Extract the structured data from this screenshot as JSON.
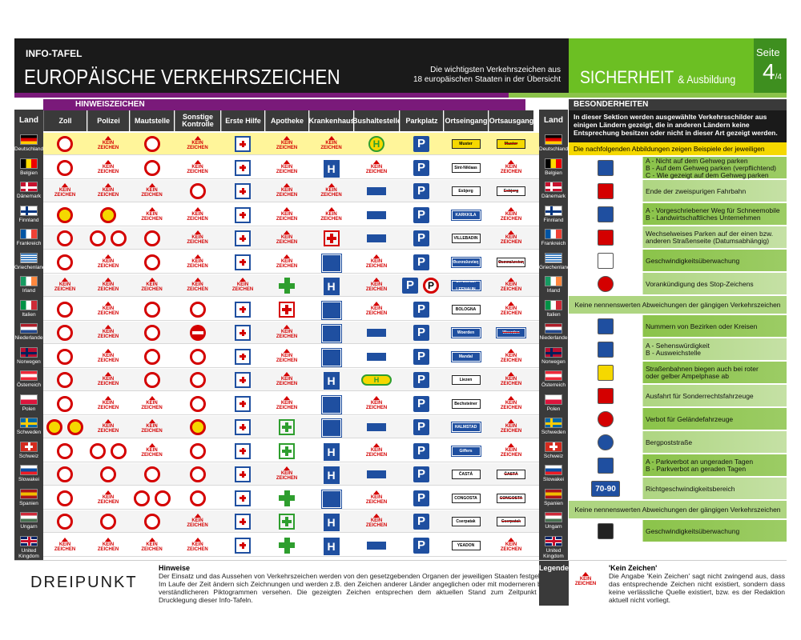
{
  "header": {
    "info": "INFO-TAFEL",
    "title": "EUROPÄISCHE VERKEHRSZEICHEN",
    "subtitle_1": "Die wichtigsten Verkehrszeichen aus",
    "subtitle_2": "18 europäischen Staaten in der Übersicht",
    "brand_1": "SICHERHEIT",
    "brand_2": "& Ausbildung",
    "page_label": "Seite",
    "page_num": "4",
    "page_total": "/4"
  },
  "table": {
    "section": "HINWEISZEICHEN",
    "land": "Land",
    "columns": [
      "Zoll",
      "Polizei",
      "Mautstelle",
      "Sonstige Kontrolle",
      "Erste Hilfe",
      "Apotheke",
      "Krankenhaus",
      "Bushaltestelle",
      "Parkplatz",
      "Ortseingang",
      "Ortsausgang"
    ],
    "kein": "KEIN",
    "zeichen": "ZEICHEN",
    "de_ort": "Muster",
    "countries": [
      "Deutschland",
      "Belgien",
      "Dänemark",
      "Finnland",
      "Frankreich",
      "Griechenland",
      "Irland",
      "Italien",
      "Niederlande",
      "Norwegen",
      "Österreich",
      "Polen",
      "Schweden",
      "Schweiz",
      "Slowakei",
      "Spanien",
      "Ungarn",
      "United Kingdom"
    ],
    "ort_names": [
      "Muster",
      "Sint-Niklaas",
      "Esbjerg",
      "KARKKILA",
      "VILLEBADIN",
      "Θεσσαλονίκη",
      "On Lionán LEENAUN",
      "BOLOGNA",
      "Woerden",
      "Mandal",
      "Liezen",
      "Bechsteiner",
      "HALMSTAD",
      "Giffers",
      "ČASTÁ",
      "CONGOSTA",
      "Cserpatak",
      "YEADON"
    ],
    "ort_out": [
      "Muster",
      "",
      "Esbjerg",
      "",
      "",
      "Θεσσαλονίκη",
      "",
      "",
      "Woerden",
      "",
      "",
      "",
      "",
      "",
      "ČASTÁ",
      "CONGOSTA",
      "Cserpatak",
      ""
    ]
  },
  "right": {
    "head": "BESONDERHEITEN",
    "intro": "In dieser Sektion werden ausgewählte Verkehrsschilder aus einigen Ländern gezeigt, die in anderen Ländern keine Entsprechung besitzen oder nicht in dieser Art gezeigt werden.",
    "intro2": "Die nachfolgenden Abbildungen zeigen Beispiele der jeweiligen Länder.",
    "rows": [
      [
        "A  -  Nicht auf dem Gehweg parken",
        "B  -  Auf dem Gehweg parken (verpflichtend)",
        "C  -  Wie gezeigt auf dem Gehweg parken"
      ],
      [
        "Ende der zweispurigen Fahrbahn"
      ],
      [
        "A  -  Vorgeschriebener Weg für Schneemobile",
        "B  -  Landwirtschaftliches Unternehmen"
      ],
      [
        "Wechselweises Parken auf der einen bzw.",
        "anderen Straßenseite (Datumsabhängig)"
      ],
      [
        "Geschwindigkeitsüberwachung"
      ],
      [
        "Vorankündigung des Stop-Zeichens"
      ],
      [
        "Nummern von Bezirken oder Kreisen"
      ],
      [
        "A  -  Sehenswürdigkeit",
        "B  -  Ausweichstelle"
      ],
      [
        "Straßenbahnen biegen auch bei roter",
        "oder gelber Ampelphase ab"
      ],
      [
        "Ausfahrt für Sonderrechtsfahrzeuge"
      ],
      [
        "Verbot für Geländefahrzeuge"
      ],
      [
        "Bergpoststraße"
      ],
      [
        "A  -  Parkverbot an ungeraden Tagen",
        "B  -  Parkverbot an geraden Tagen"
      ],
      [
        "Richtgeschwindigkeitsbereich"
      ],
      [
        "Geschwindigkeitsüberwachung"
      ]
    ],
    "note": "Keine nennenswerten Abweichungen der gängigen Verkehrszeichen",
    "speed": "70-90"
  },
  "footer": {
    "logo": "DREIPUNKT",
    "hinweise_title": "Hinweise",
    "hinweise": "Der Einsatz und das Aussehen von Verkehrszeichen werden von den gesetzgebenden Organen der jeweiligen Staaten festgelegt. Im Laufe der Zeit ändern sich Zeichnungen und werden z.B. den Zeichen anderer Länder angeglichen oder mit moderneren bzw. verständlicheren Piktogrammen versehen. Die gezeigten Zeichen entsprechen dem aktuellen Stand zum Zeitpunkt der Drucklegung dieser Info-Tafeln.",
    "legende": "Legende",
    "kein_title": "'Kein Zeichen'",
    "kein_text": "Die Angabe 'Kein Zeichen' sagt nicht zwingend aus, dass das entsprechende Zeichen nicht existiert, sondern dass keine verlässliche Quelle existiert, bzw. es der Redaktion aktuell nicht vorliegt."
  }
}
